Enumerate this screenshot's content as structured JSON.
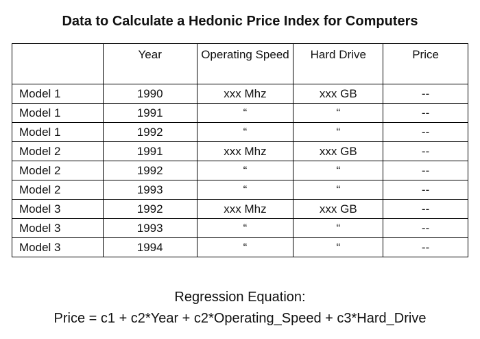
{
  "title": "Data to Calculate a Hedonic Price Index for Computers",
  "table": {
    "headers": [
      "",
      "Year",
      "Operating Speed",
      "Hard Drive",
      "Price"
    ],
    "rows": [
      [
        "Model 1",
        "1990",
        "xxx Mhz",
        "xxx GB",
        "--"
      ],
      [
        "Model 1",
        "1991",
        "“",
        "“",
        "--"
      ],
      [
        "Model 1",
        "1992",
        "“",
        "“",
        "--"
      ],
      [
        "Model 2",
        "1991",
        "xxx Mhz",
        "xxx GB",
        "--"
      ],
      [
        "Model 2",
        "1992",
        "“",
        "“",
        "--"
      ],
      [
        "Model 2",
        "1993",
        "“",
        "“",
        "--"
      ],
      [
        "Model 3",
        "1992",
        "xxx Mhz",
        "xxx GB",
        "--"
      ],
      [
        "Model 3",
        "1993",
        "“",
        "“",
        "--"
      ],
      [
        "Model 3",
        "1994",
        "“",
        "“",
        "--"
      ]
    ]
  },
  "equation": {
    "label": "Regression Equation:",
    "formula": "Price = c1 + c2*Year + c2*Operating_Speed + c3*Hard_Drive"
  }
}
